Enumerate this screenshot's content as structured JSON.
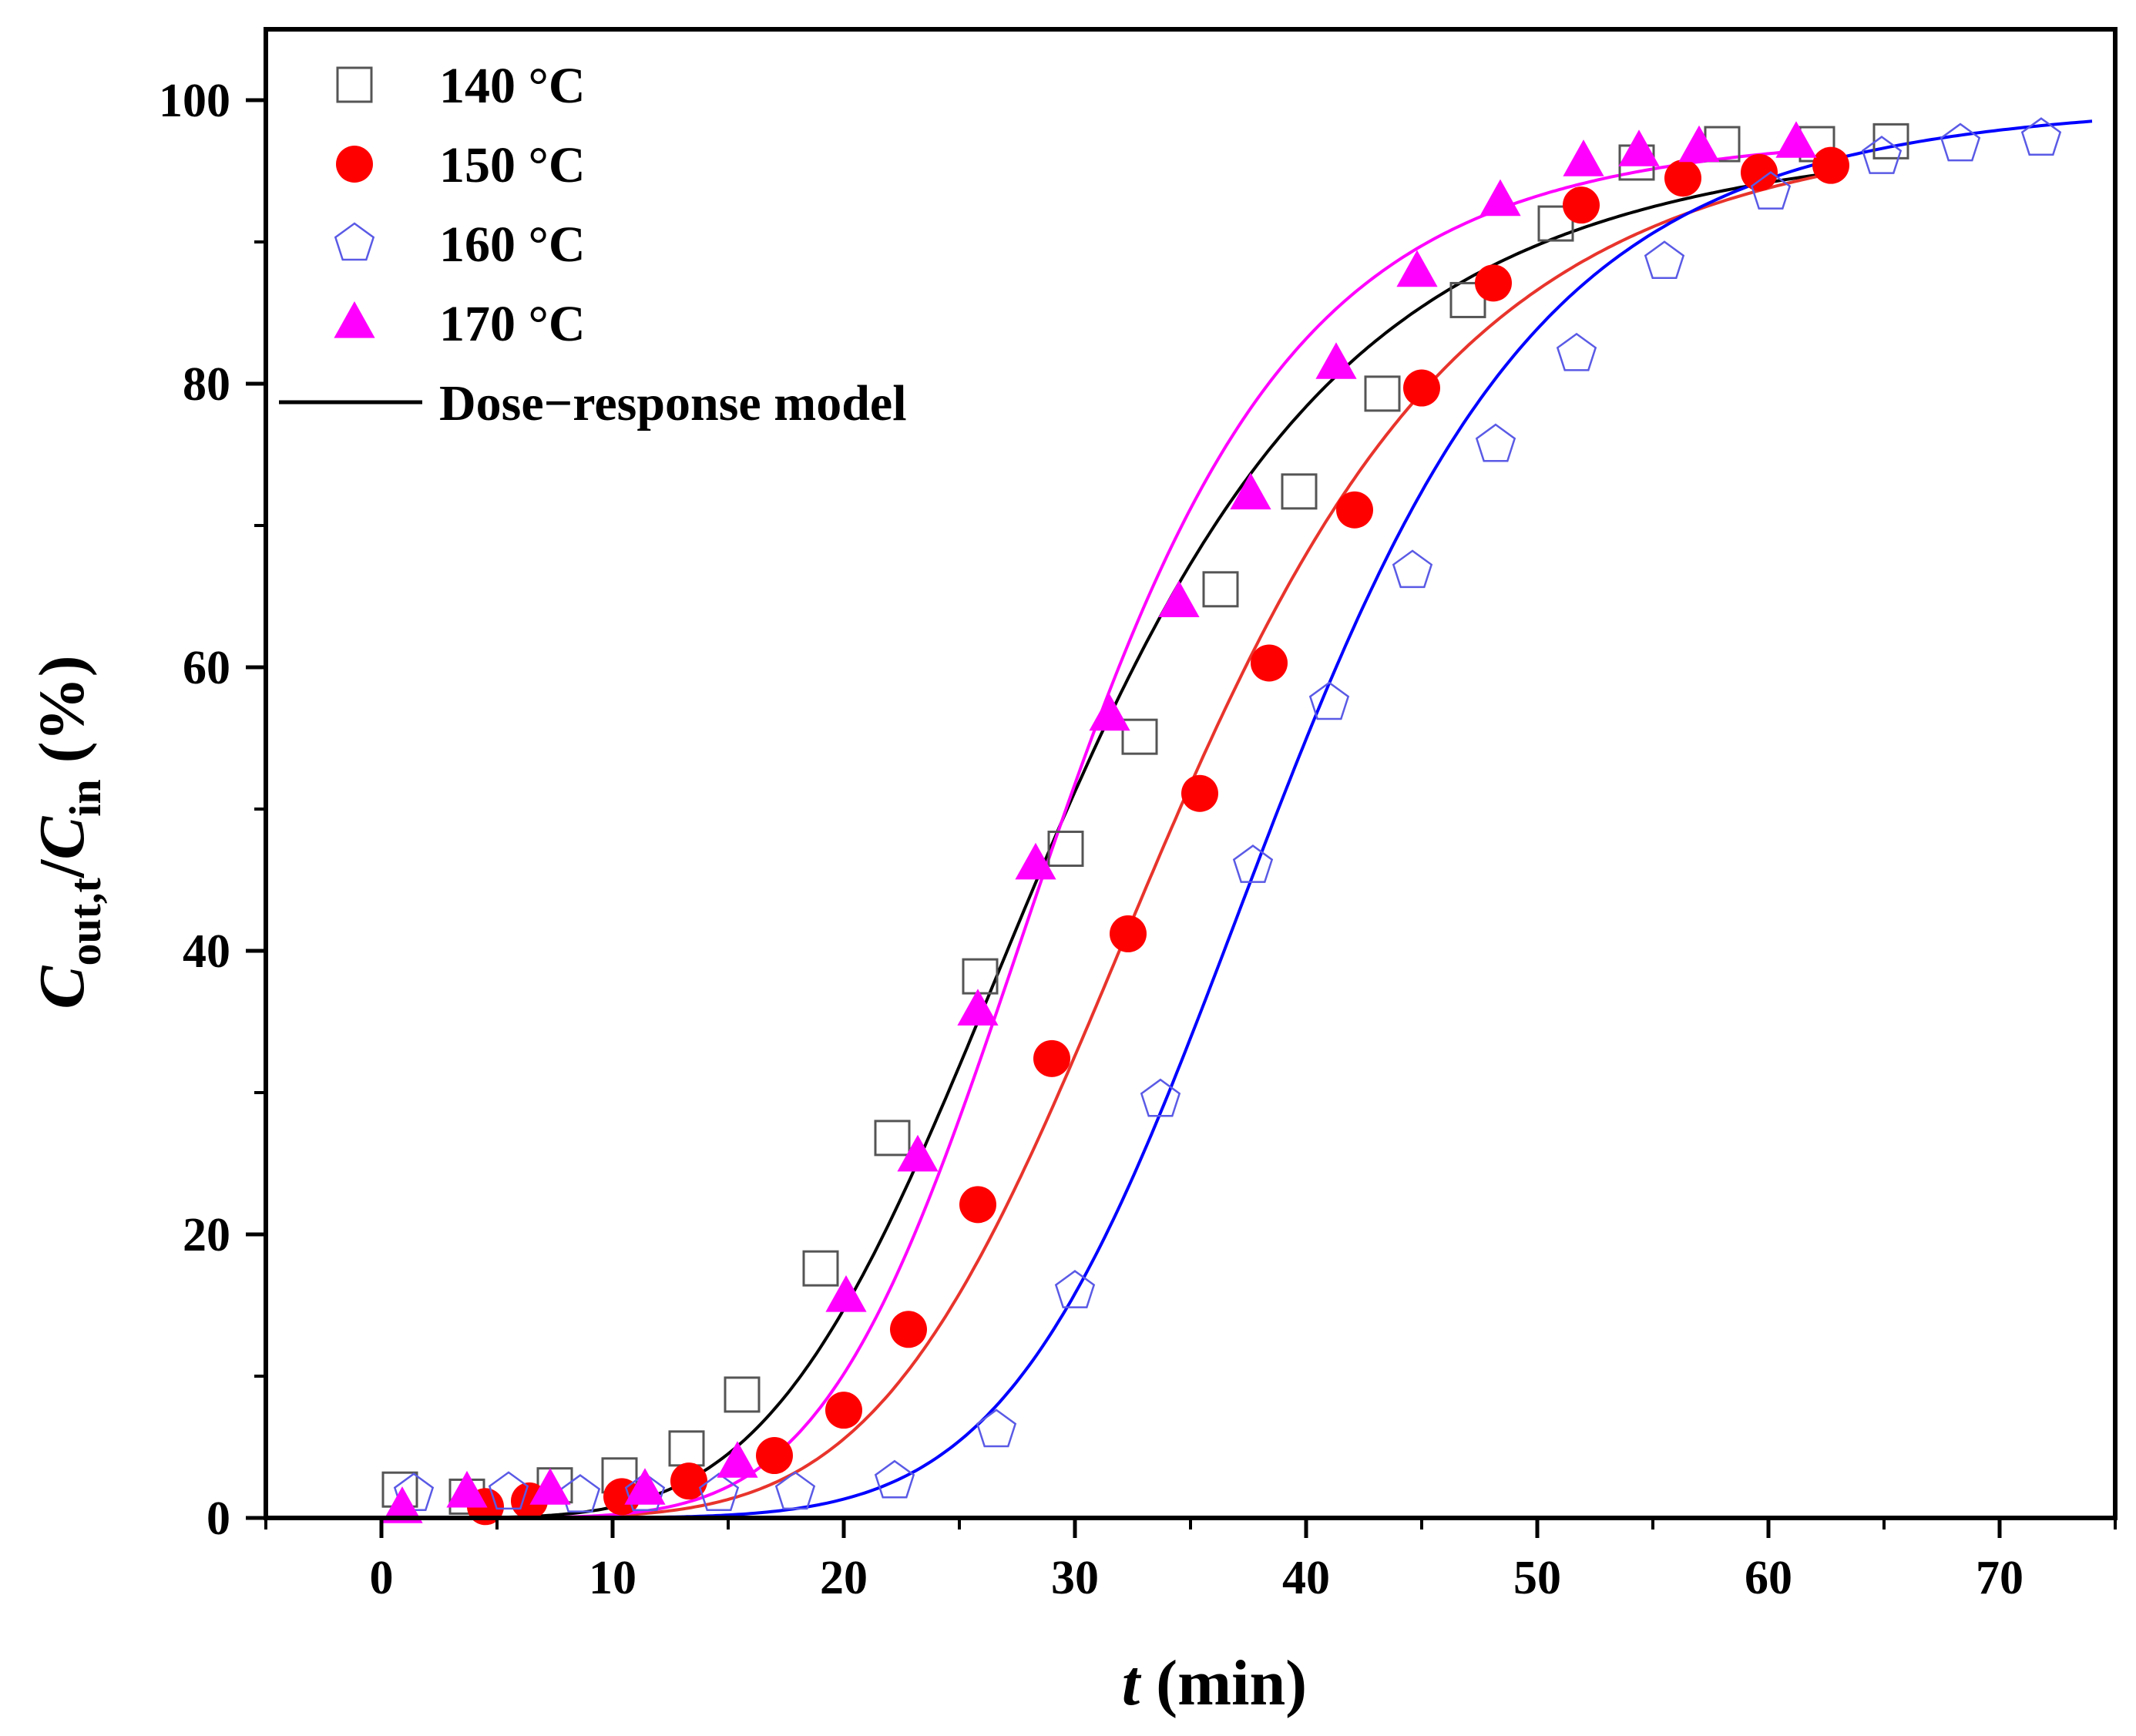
{
  "chart_data": {
    "type": "scatter",
    "title": "",
    "xlabel": {
      "italic": "t",
      "rest": " (min)"
    },
    "ylabel": {
      "c1": "C",
      "s1": "out,t",
      "slash": "/",
      "c2": "C",
      "s2": "in",
      "unit": " (%)"
    },
    "xlim": [
      -5,
      75
    ],
    "ylim": [
      0,
      105
    ],
    "xticks": [
      0,
      10,
      20,
      30,
      40,
      50,
      60,
      70
    ],
    "yticks": [
      0,
      20,
      40,
      60,
      80,
      100
    ],
    "grid": false,
    "legend_position": "top-left",
    "series": [
      {
        "name": "140 °C",
        "marker": "square-open",
        "color": "#555555",
        "fit_color": "#000000",
        "fit": {
          "A1": 0,
          "A2": 98,
          "x0": 29.4,
          "p": 4.5,
          "xmin": 1,
          "xmax": 63
        },
        "x": [
          0.8,
          3.7,
          7.5,
          10.3,
          13.2,
          15.6,
          19.0,
          22.1,
          25.9,
          29.6,
          32.8,
          36.3,
          39.7,
          43.3,
          47.0,
          50.8,
          54.3,
          58.0,
          62.1,
          65.3
        ],
        "y": [
          2.0,
          1.5,
          2.3,
          3.0,
          4.9,
          8.7,
          17.6,
          26.8,
          38.2,
          47.2,
          55.1,
          65.5,
          72.4,
          79.3,
          85.9,
          91.3,
          95.6,
          96.9,
          96.9,
          97.1
        ]
      },
      {
        "name": "150 °C",
        "marker": "circle-filled",
        "color": "#ff0000",
        "fit_color": "#e8342c",
        "fit": {
          "A1": 0,
          "A2": 99,
          "x0": 34.4,
          "p": 5.2,
          "xmin": 1,
          "xmax": 63
        },
        "x": [
          4.5,
          6.4,
          10.4,
          13.3,
          17.0,
          20.0,
          22.8,
          25.8,
          29.0,
          32.3,
          35.4,
          38.4,
          42.1,
          45.0,
          48.1,
          51.9,
          56.3,
          59.6,
          62.7
        ],
        "y": [
          0.8,
          1.2,
          1.5,
          2.6,
          4.4,
          7.6,
          13.3,
          22.1,
          32.4,
          41.2,
          51.1,
          60.3,
          71.1,
          79.7,
          87.1,
          92.6,
          94.5,
          94.9,
          95.4
        ]
      },
      {
        "name": "160 °C",
        "marker": "pentagon-open",
        "color": "#5a5ae6",
        "fit_color": "#0000ff",
        "fit": {
          "A1": 0,
          "A2": 100,
          "x0": 38.8,
          "p": 6.5,
          "xmin": 1,
          "xmax": 74
        },
        "x": [
          1.4,
          5.5,
          8.6,
          11.4,
          14.6,
          17.9,
          22.2,
          26.6,
          30.0,
          33.7,
          37.7,
          41.0,
          44.6,
          48.2,
          51.7,
          55.5,
          60.1,
          64.9,
          68.3,
          71.8
        ],
        "y": [
          1.7,
          1.8,
          1.6,
          1.7,
          1.7,
          1.8,
          2.6,
          6.2,
          16.0,
          29.5,
          46.0,
          57.5,
          66.8,
          75.7,
          82.1,
          88.6,
          93.5,
          96.0,
          96.9,
          97.3
        ]
      },
      {
        "name": "170 °C",
        "marker": "triangle-filled",
        "color": "#ff00ff",
        "fit_color": "#ff00ff",
        "fit": {
          "A1": 0,
          "A2": 98,
          "x0": 29.4,
          "p": 5.6,
          "xmin": 1,
          "xmax": 61
        },
        "x": [
          0.9,
          3.7,
          7.3,
          11.4,
          15.4,
          20.1,
          23.2,
          25.8,
          28.3,
          31.5,
          34.5,
          37.6,
          41.3,
          44.8,
          48.4,
          52.0,
          54.4,
          57.0,
          61.2
        ],
        "y": [
          0.7,
          1.8,
          2.0,
          2.0,
          3.9,
          15.6,
          25.5,
          35.8,
          46.1,
          56.6,
          64.6,
          72.2,
          81.4,
          87.9,
          92.9,
          95.7,
          96.4,
          96.7,
          97.0
        ]
      }
    ],
    "legend": {
      "entries": [
        "140 °C",
        "150 °C",
        "160 °C",
        "170 °C",
        "Dose−response model"
      ]
    }
  }
}
